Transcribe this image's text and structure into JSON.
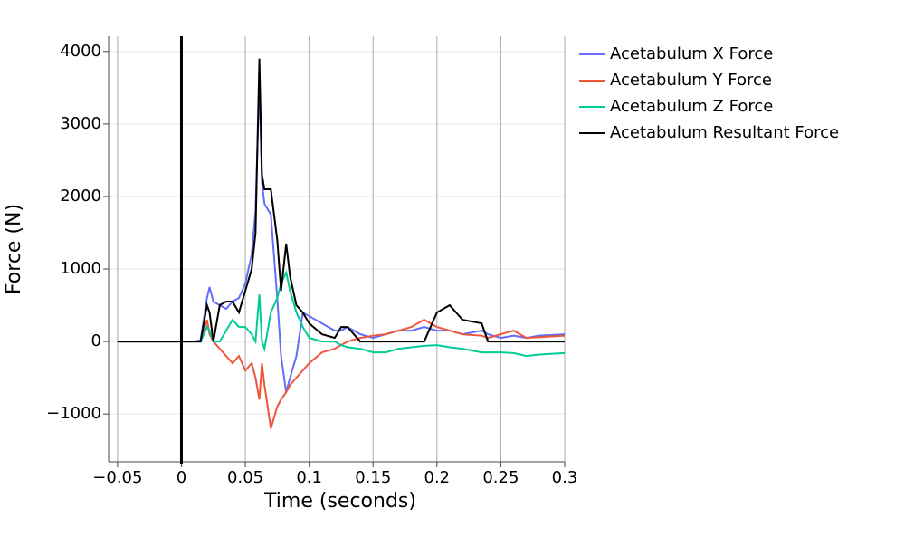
{
  "chart_data": {
    "type": "line",
    "xlabel": "Time (seconds)",
    "ylabel": "Force (N)",
    "x": [
      -0.05,
      0,
      0.01,
      0.015,
      0.02,
      0.022,
      0.025,
      0.03,
      0.035,
      0.04,
      0.045,
      0.05,
      0.055,
      0.058,
      0.061,
      0.063,
      0.065,
      0.07,
      0.075,
      0.078,
      0.082,
      0.085,
      0.09,
      0.095,
      0.1,
      0.11,
      0.12,
      0.125,
      0.13,
      0.14,
      0.15,
      0.16,
      0.17,
      0.18,
      0.19,
      0.2,
      0.21,
      0.22,
      0.235,
      0.24,
      0.25,
      0.26,
      0.27,
      0.28,
      0.3
    ],
    "series": [
      {
        "name": "Acetabulum X Force",
        "color": "#636efa",
        "values": [
          0,
          0,
          0,
          20,
          600,
          750,
          550,
          500,
          450,
          550,
          600,
          800,
          1200,
          1800,
          3600,
          2200,
          1900,
          1750,
          600,
          -200,
          -700,
          -500,
          -200,
          400,
          350,
          250,
          150,
          150,
          200,
          100,
          50,
          100,
          150,
          150,
          200,
          150,
          150,
          100,
          150,
          100,
          50,
          80,
          50,
          80,
          100
        ]
      },
      {
        "name": "Acetabulum Y Force",
        "color": "#ef553b",
        "values": [
          0,
          0,
          0,
          0,
          300,
          100,
          0,
          -100,
          -200,
          -300,
          -200,
          -400,
          -300,
          -500,
          -800,
          -300,
          -600,
          -1200,
          -900,
          -800,
          -700,
          -600,
          -500,
          -400,
          -300,
          -150,
          -100,
          -50,
          0,
          50,
          80,
          100,
          150,
          200,
          300,
          200,
          150,
          100,
          80,
          50,
          100,
          150,
          50,
          60,
          80
        ]
      },
      {
        "name": "Acetabulum Z Force",
        "color": "#00cc96",
        "values": [
          0,
          0,
          0,
          0,
          200,
          150,
          0,
          0,
          150,
          300,
          200,
          200,
          100,
          0,
          650,
          0,
          -100,
          400,
          600,
          800,
          950,
          700,
          400,
          200,
          50,
          0,
          0,
          -50,
          -80,
          -100,
          -150,
          -150,
          -100,
          -80,
          -60,
          -50,
          -80,
          -100,
          -150,
          -150,
          -150,
          -160,
          -200,
          -180,
          -160
        ]
      },
      {
        "name": "Acetabulum Resultant Force",
        "color": "#000000",
        "values": [
          0,
          0,
          0,
          0,
          500,
          400,
          0,
          500,
          550,
          550,
          400,
          700,
          1000,
          1500,
          3900,
          2300,
          2100,
          2100,
          1400,
          700,
          1350,
          900,
          500,
          400,
          250,
          100,
          50,
          200,
          200,
          0,
          0,
          0,
          0,
          0,
          0,
          400,
          500,
          300,
          250,
          0,
          0,
          0,
          0,
          0,
          0
        ]
      }
    ],
    "xlim": [
      -0.057,
      0.3
    ],
    "ylim": [
      -1660,
      4210
    ],
    "xticks": [
      {
        "value": -0.05,
        "label": "−0.05"
      },
      0,
      0.05,
      0.1,
      0.15,
      0.2,
      0.25,
      0.3
    ],
    "yticks": [
      {
        "value": -1000,
        "label": "−1000"
      },
      0,
      1000,
      2000,
      3000,
      4000
    ],
    "vline": 0,
    "grid": true,
    "legend": "right"
  }
}
